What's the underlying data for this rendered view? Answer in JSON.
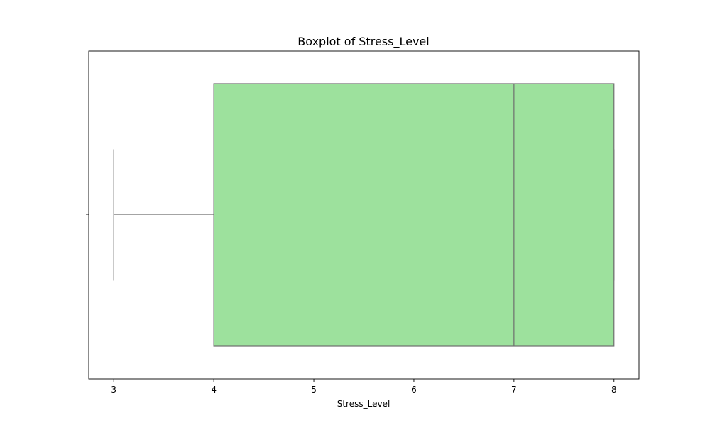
{
  "chart_data": {
    "type": "box",
    "title": "Boxplot of Stress_Level",
    "xlabel": "Stress_Level",
    "ylabel": "",
    "orientation": "horizontal",
    "xlim": [
      2.75,
      8.25
    ],
    "xticks": [
      3,
      4,
      5,
      6,
      7,
      8
    ],
    "grid": false,
    "legend": "none",
    "box": {
      "whisker_low": 3,
      "q1": 4,
      "median": 7,
      "q3": 8,
      "whisker_high": 8,
      "outliers": []
    },
    "colors": {
      "box_fill": "#9de19d",
      "line": "#6e6e6e",
      "axes": "#000000"
    }
  }
}
